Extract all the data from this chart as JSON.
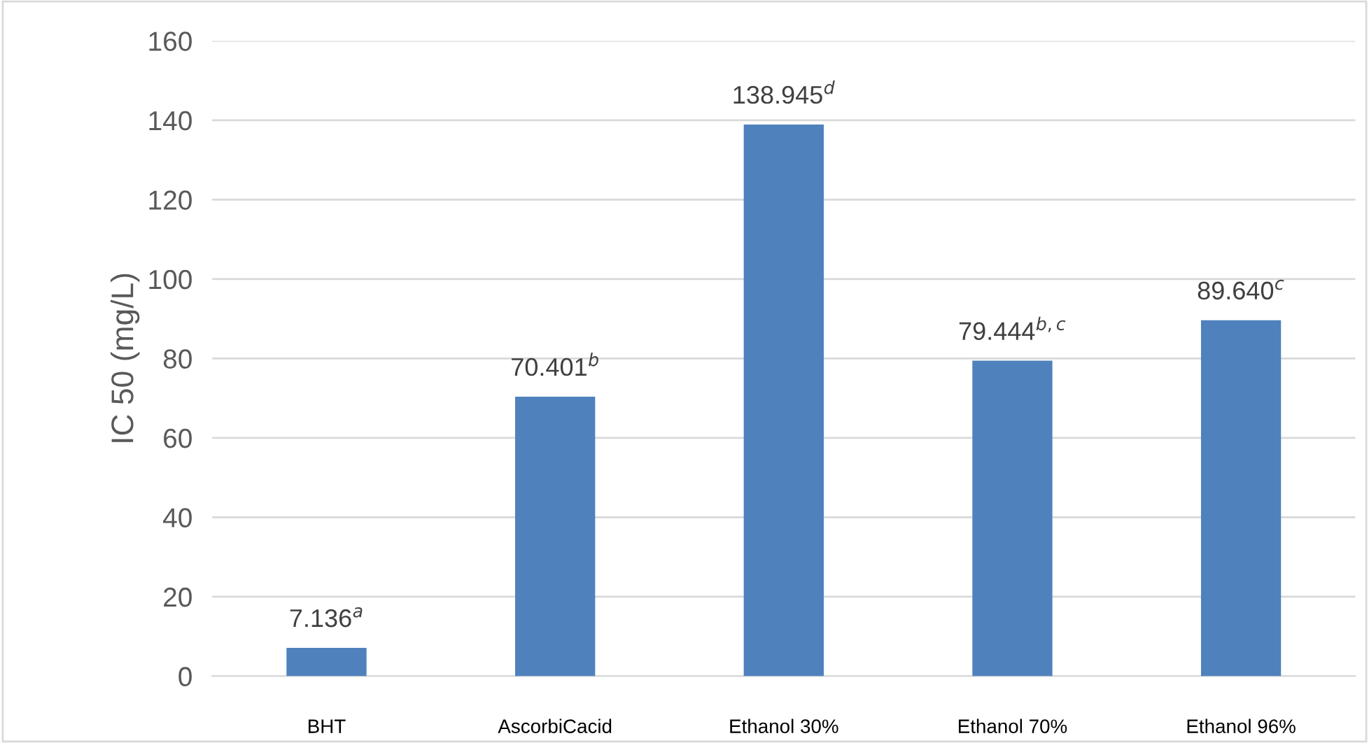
{
  "chart_data": {
    "type": "bar",
    "ylabel": "IC 50 (mg/L)",
    "categories": [
      "BHT",
      "AscorbiCacid",
      "Ethanol 30%",
      "Ethanol 70%",
      "Ethanol 96%"
    ],
    "values": [
      7.136,
      70.401,
      138.945,
      79.444,
      89.64
    ],
    "value_labels": [
      "7.136$^{a}$",
      "70.401$^{b}$",
      "138.945$^{d}$",
      "79.444$^{b,c}$",
      "89.640$^{c}$"
    ],
    "color": "#4f81bd",
    "ylim": [
      0,
      160
    ],
    "yticks": [
      0,
      20,
      40,
      60,
      80,
      100,
      120,
      140,
      160
    ],
    "grid": "y"
  }
}
